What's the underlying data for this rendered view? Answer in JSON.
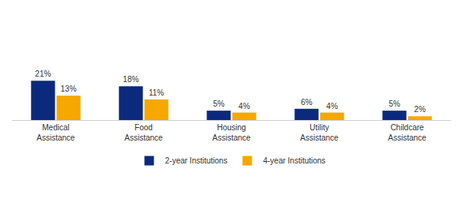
{
  "chart_data": {
    "type": "bar",
    "categories": [
      "Medical Assistance",
      "Food Assistance",
      "Housing Assistance",
      "Utility Assistance",
      "Childcare Assistance"
    ],
    "series": [
      {
        "name": "2-year Institutions",
        "color": "#0b2a7d",
        "values": [
          21,
          18,
          5,
          6,
          5
        ],
        "value_labels": [
          "21%",
          "18%",
          "5%",
          "6%",
          "5%"
        ]
      },
      {
        "name": "4-year Institutions",
        "color": "#f5a800",
        "values": [
          13,
          11,
          4,
          4,
          2
        ],
        "value_labels": [
          "13%",
          "11%",
          "4%",
          "4%",
          "2%"
        ]
      }
    ],
    "ylim": [
      0,
      35
    ],
    "data_labels": true,
    "tick_labels": "x",
    "grid": false,
    "legend": "bottom"
  }
}
